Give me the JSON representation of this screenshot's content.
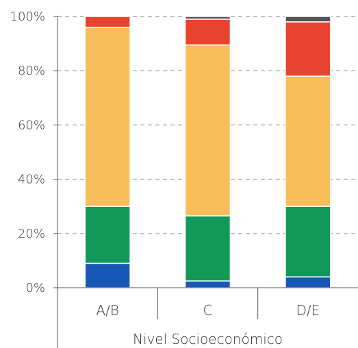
{
  "chart_data": {
    "type": "bar",
    "stacked": true,
    "categories": [
      "A/B",
      "C",
      "D/E"
    ],
    "xlabel": "Nivel Socioeconómico",
    "ylabel": "",
    "ylim": [
      0,
      100
    ],
    "yticks": [
      "0%",
      "20%",
      "40%",
      "60%",
      "80%",
      "100%"
    ],
    "grid": true,
    "series": [
      {
        "color": "#1757b8",
        "values": [
          9,
          2.5,
          4
        ]
      },
      {
        "color": "#12995a",
        "values": [
          21,
          24,
          26
        ]
      },
      {
        "color": "#f9bd5c",
        "values": [
          66,
          63,
          48
        ]
      },
      {
        "color": "#e8432f",
        "values": [
          4,
          9.5,
          20
        ]
      },
      {
        "color": "#555555",
        "values": [
          0,
          1,
          2
        ]
      }
    ]
  }
}
